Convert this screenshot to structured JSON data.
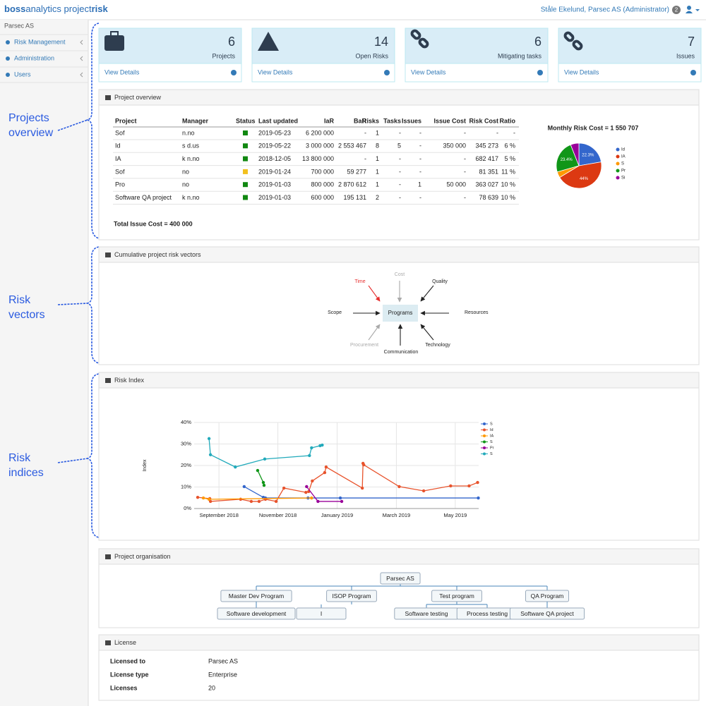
{
  "header": {
    "brand": "boss",
    "brand_mid": "analytics project",
    "brand_end": "risk",
    "user": "Ståle Ekelund, Parsec AS (Administrator)",
    "badge": "2"
  },
  "sidebar": {
    "org": "Parsec AS",
    "items": [
      "Risk Management",
      "Administration",
      "Users"
    ]
  },
  "cards": [
    {
      "value": "6",
      "label": "Projects",
      "link": "View Details"
    },
    {
      "value": "14",
      "label": "Open Risks",
      "link": "View Details"
    },
    {
      "value": "6",
      "label": "Mitigating tasks",
      "link": "View Details"
    },
    {
      "value": "7",
      "label": "Issues",
      "link": "View Details"
    }
  ],
  "annotations": [
    "Projects overview",
    "Risk vectors",
    "Risk indices"
  ],
  "overview": {
    "title": "Project overview",
    "columns": [
      "Project",
      "Manager",
      "Status",
      "Last updated",
      "IaR",
      "BaR",
      "Risks",
      "Tasks",
      "Issues",
      "Issue Cost",
      "Risk Cost",
      "Ratio"
    ],
    "rows": [
      [
        "Sof",
        "n.no",
        "",
        "2019-05-23",
        "6 200 000",
        "-",
        "1",
        "-",
        "-",
        "-",
        "-",
        "-"
      ],
      [
        "Id",
        "s            d.us",
        "",
        "2019-05-22",
        "3 000 000",
        "2 553 467",
        "8",
        "5",
        "-",
        "350 000",
        "345 273",
        "6 %"
      ],
      [
        "IA",
        "k            n.no",
        "",
        "2018-12-05",
        "13 800 000",
        "-",
        "1",
        "-",
        "-",
        "-",
        "682 417",
        "5 %"
      ],
      [
        "Sof",
        "no",
        "",
        "2019-01-24",
        "700 000",
        "59 277",
        "1",
        "-",
        "-",
        "-",
        "81 351",
        "11 %"
      ],
      [
        "Pro",
        "no",
        "",
        "2019-01-03",
        "800 000",
        "2 870 612",
        "1",
        "-",
        "1",
        "50 000",
        "363 027",
        "10 %"
      ],
      [
        "Software QA project",
        "k          n.no",
        "",
        "2019-01-03",
        "600 000",
        "195 131",
        "2",
        "-",
        "-",
        "-",
        "78 639",
        "10 %"
      ]
    ],
    "status_colors": [
      "#118811",
      "#118811",
      "#118811",
      "#f2c01e",
      "#118811",
      "#118811"
    ],
    "total": "Total Issue Cost = 400 000"
  },
  "pie": {
    "type": "pie",
    "title": "Monthly Risk Cost = 1 550 707",
    "names": [
      "Id",
      "IA",
      "S",
      "Pr",
      "Si"
    ],
    "values": [
      22.3,
      44,
      4.3,
      23.4,
      6
    ],
    "value_labels": [
      "22.3%",
      "44%",
      null,
      "23.4%",
      null
    ],
    "colors": [
      "#3366cc",
      "#dc3912",
      "#ff9900",
      "#109618",
      "#990099"
    ]
  },
  "vectors": {
    "title": "Cumulative project risk vectors",
    "center": "Programs",
    "factors": [
      {
        "label": "Cost",
        "color": "#aaaaaa"
      },
      {
        "label": "Time",
        "color": "#e62e2e"
      },
      {
        "label": "Quality",
        "color": "#222222"
      },
      {
        "label": "Scope",
        "color": "#222222"
      },
      {
        "label": "Resources",
        "color": "#222222"
      },
      {
        "label": "Procurement",
        "color": "#aaaaaa"
      },
      {
        "label": "Communication",
        "color": "#222222"
      },
      {
        "label": "Technology",
        "color": "#222222"
      }
    ]
  },
  "risk_index": {
    "type": "line",
    "title": "Risk Index",
    "ylabel": "Index",
    "ylim": [
      0,
      40
    ],
    "yticks": [
      {
        "value": 0,
        "label": "0%"
      },
      {
        "value": 10,
        "label": "10%"
      },
      {
        "value": 20,
        "label": "20%"
      },
      {
        "value": 30,
        "label": "30%"
      },
      {
        "value": 40,
        "label": "40%"
      }
    ],
    "xlim": [
      2018.597,
      2019.399
    ],
    "xticks": [
      {
        "value": 2018.667,
        "label": "September 2018"
      },
      {
        "value": 2018.833,
        "label": "November 2018"
      },
      {
        "value": 2019.0,
        "label": "January 2019"
      },
      {
        "value": 2019.167,
        "label": "March 2019"
      },
      {
        "value": 2019.333,
        "label": "May 2019"
      }
    ],
    "grid": true,
    "series": [
      {
        "name": "S",
        "color": "#3366cc",
        "x": [
          2018.738,
          2018.792,
          2018.798,
          2018.918,
          2019.009,
          2019.398
        ],
        "values": [
          10.2,
          5.2,
          4.9,
          4.9,
          4.9,
          4.9
        ]
      },
      {
        "name": "Id",
        "color": "#e8532c",
        "x": [
          2018.607,
          2018.641,
          2018.643,
          2018.728,
          2018.758,
          2018.78,
          2018.798,
          2018.828,
          2018.85,
          2018.912,
          2018.92,
          2018.93,
          2018.965,
          2018.969,
          2019.071,
          2019.073,
          2019.075,
          2019.175,
          2019.244,
          2019.32,
          2019.372,
          2019.396
        ],
        "values": [
          5.2,
          4.6,
          3.3,
          4.3,
          3.3,
          3.3,
          4.3,
          3.3,
          9.5,
          7.5,
          7.9,
          12.8,
          16.7,
          19.3,
          9.5,
          21,
          20.3,
          10.2,
          8.2,
          10.5,
          10.5,
          12.1
        ]
      },
      {
        "name": "IA",
        "color": "#ff9900",
        "x": [
          2018.623,
          2018.639,
          2018.928
        ],
        "values": [
          4.9,
          4.3,
          4.9
        ]
      },
      {
        "name": "S",
        "color": "#109618",
        "x": [
          2018.776,
          2018.792,
          2018.794
        ],
        "values": [
          17.7,
          12.1,
          10.8
        ]
      },
      {
        "name": "Pr",
        "color": "#990099",
        "x": [
          2018.914,
          2018.946,
          2019.013
        ],
        "values": [
          10.2,
          3.3,
          3.3
        ]
      },
      {
        "name": "S",
        "color": "#22aabb",
        "x": [
          2018.639,
          2018.643,
          2018.713,
          2018.796,
          2018.922,
          2018.928,
          2018.952,
          2018.958
        ],
        "values": [
          32.5,
          25,
          19.3,
          23,
          24.6,
          28.2,
          29.2,
          29.5
        ]
      }
    ]
  },
  "org": {
    "title": "Project organisation",
    "root": "Parsec AS",
    "programs": [
      {
        "name": "Master Dev Program",
        "children": [
          "Software development"
        ]
      },
      {
        "name": "ISOP Program",
        "children": [
          "I"
        ]
      },
      {
        "name": "Test program",
        "children": [
          "Software testing",
          "Process testing"
        ]
      },
      {
        "name": "QA Program",
        "children": [
          "Software QA project"
        ]
      }
    ]
  },
  "license": {
    "title": "License",
    "rows": [
      [
        "Licensed to",
        "Parsec AS"
      ],
      [
        "License type",
        "Enterprise"
      ],
      [
        "Licenses",
        "20"
      ]
    ]
  }
}
